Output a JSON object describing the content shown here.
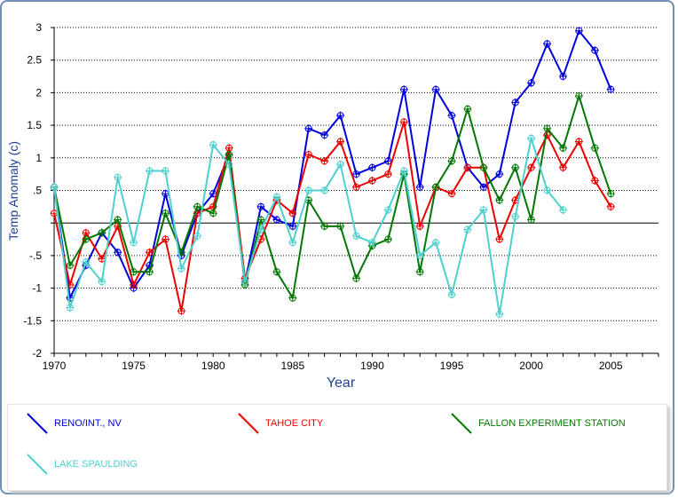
{
  "chart_data": {
    "type": "line",
    "xlabel": "Year",
    "ylabel": "Temp Anomaly (c)",
    "xlim": [
      1970,
      2008
    ],
    "ylim": [
      -2,
      3
    ],
    "xticks": [
      1970,
      1975,
      1980,
      1985,
      1990,
      1995,
      2000,
      2005
    ],
    "yticks": [
      3,
      2.5,
      2,
      1.5,
      1,
      0.5,
      0,
      -0.5,
      -1,
      -1.5,
      -2
    ],
    "ytick_labels": [
      "3",
      "2.5",
      "2",
      "1.5",
      "1",
      ".5",
      "",
      "-.5",
      "-1",
      "-1.5",
      "-2"
    ],
    "grid": "horizontal dotted",
    "legend_position": "bottom",
    "series": [
      {
        "name": "RENO/INT., NV",
        "color": "#0000dd",
        "x": [
          1970,
          1971,
          1972,
          1973,
          1974,
          1975,
          1976,
          1977,
          1978,
          1979,
          1980,
          1981,
          1982,
          1983,
          1984,
          1985,
          1986,
          1987,
          1988,
          1989,
          1990,
          1991,
          1992,
          1993,
          1994,
          1995,
          1996,
          1997,
          1998,
          1999,
          2000,
          2001,
          2002,
          2003,
          2004,
          2005
        ],
        "y": [
          0.55,
          -1.15,
          -0.65,
          -0.15,
          -0.45,
          -1.0,
          -0.65,
          0.45,
          -0.5,
          0.15,
          0.45,
          1.05,
          -0.9,
          0.25,
          0.05,
          -0.05,
          1.45,
          1.35,
          1.65,
          0.75,
          0.85,
          0.95,
          2.05,
          0.55,
          2.05,
          1.65,
          0.85,
          0.55,
          0.75,
          1.85,
          2.15,
          2.75,
          2.25,
          2.95,
          2.65,
          2.05
        ]
      },
      {
        "name": "TAHOE CITY",
        "color": "#ee0000",
        "x": [
          1970,
          1971,
          1972,
          1973,
          1974,
          1975,
          1976,
          1977,
          1978,
          1979,
          1980,
          1981,
          1982,
          1983,
          1984,
          1985,
          1986,
          1987,
          1988,
          1989,
          1990,
          1991,
          1992,
          1993,
          1994,
          1995,
          1996,
          1997,
          1998,
          1999,
          2000,
          2001,
          2002,
          2003,
          2004,
          2005
        ],
        "y": [
          0.15,
          -0.95,
          -0.15,
          -0.55,
          -0.05,
          -0.95,
          -0.45,
          -0.25,
          -1.35,
          0.15,
          0.25,
          1.15,
          -0.85,
          -0.25,
          0.35,
          0.15,
          1.05,
          0.95,
          1.25,
          0.55,
          0.65,
          0.75,
          1.55,
          -0.05,
          0.55,
          0.45,
          0.85,
          0.85,
          -0.25,
          0.35,
          0.85,
          1.35,
          0.85,
          1.25,
          0.65,
          0.25
        ]
      },
      {
        "name": "FALLON EXPERIMENT STATION",
        "color": "#007700",
        "x": [
          1970,
          1971,
          1972,
          1973,
          1974,
          1975,
          1976,
          1977,
          1978,
          1979,
          1980,
          1981,
          1982,
          1983,
          1984,
          1985,
          1986,
          1987,
          1988,
          1989,
          1990,
          1991,
          1992,
          1993,
          1994,
          1995,
          1996,
          1997,
          1998,
          1999,
          2000,
          2001,
          2002,
          2003,
          2004,
          2005
        ],
        "y": [
          0.55,
          -0.65,
          -0.25,
          -0.15,
          0.05,
          -0.75,
          -0.75,
          0.15,
          -0.45,
          0.25,
          0.15,
          1.05,
          -0.95,
          0.05,
          -0.75,
          -1.15,
          0.35,
          -0.05,
          -0.05,
          -0.85,
          -0.35,
          -0.25,
          0.75,
          -0.75,
          0.55,
          0.95,
          1.75,
          0.85,
          0.35,
          0.85,
          0.05,
          1.45,
          1.15,
          1.95,
          1.15,
          0.45
        ]
      },
      {
        "name": "LAKE SPAULDING",
        "color": "#4fcfcf",
        "x": [
          1970,
          1971,
          1972,
          1973,
          1974,
          1975,
          1976,
          1977,
          1978,
          1979,
          1980,
          1981,
          1982,
          1983,
          1984,
          1985,
          1986,
          1987,
          1988,
          1989,
          1990,
          1991,
          1992,
          1993,
          1994,
          1995,
          1996,
          1997,
          1998,
          1999,
          2000,
          2001,
          2002
        ],
        "y": [
          0.55,
          -1.3,
          -0.6,
          -0.9,
          0.7,
          -0.3,
          0.8,
          0.8,
          -0.7,
          -0.2,
          1.2,
          0.9,
          -0.9,
          -0.1,
          0.4,
          -0.3,
          0.5,
          0.5,
          0.9,
          -0.2,
          -0.3,
          0.2,
          0.8,
          -0.5,
          -0.3,
          -1.1,
          -0.1,
          0.2,
          -1.4,
          0.1,
          1.3,
          0.5,
          0.2
        ]
      }
    ]
  }
}
